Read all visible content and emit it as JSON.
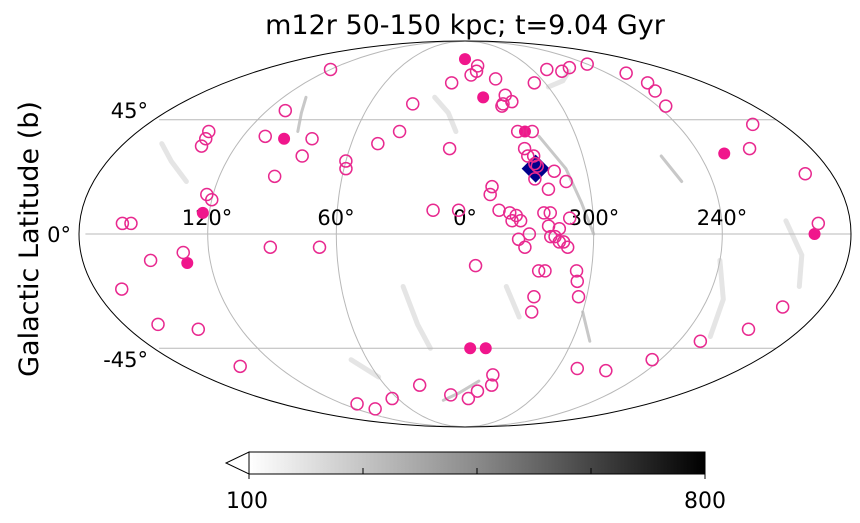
{
  "chart_data": {
    "type": "scatter",
    "projection": "mollweide",
    "title": "m12r 50-150 kpc; t=9.04 Gyr",
    "ylabel": "Galactic Latitude (b)",
    "lon_ticks": [
      "120°",
      "60°",
      "0°",
      "300°",
      "240°"
    ],
    "lat_ticks": [
      "45°",
      "0°",
      "-45°"
    ],
    "colorbar": {
      "min_label": "100",
      "max_label": "800",
      "min": 100,
      "max": 800,
      "cmap": "Greys",
      "extend": "min"
    },
    "colors": {
      "open_marker": "#e8298f",
      "filled_marker": "#f0168c",
      "diamond": "#00008b",
      "grid": "#b8b8b8",
      "frame": "#000000"
    },
    "series": [
      {
        "marker": "diamond",
        "filled": true,
        "points": [
          [
            -35,
            25
          ]
        ]
      },
      {
        "marker": "circle",
        "filled": true,
        "points": [
          [
            0,
            75
          ],
          [
            -12,
            55
          ],
          [
            -33,
            40
          ],
          [
            97,
            37
          ],
          [
            -133,
            31
          ],
          [
            123,
            8
          ],
          [
            131,
            -11
          ],
          [
            -163,
            0
          ],
          [
            -3,
            -45
          ],
          [
            -12,
            -45
          ]
        ]
      },
      {
        "marker": "circle",
        "filled": false,
        "points": [
          [
            -12,
            71
          ],
          [
            -5,
            66
          ],
          [
            -10,
            68
          ],
          [
            -24,
            64
          ],
          [
            -52,
            62
          ],
          [
            -84,
            68
          ],
          [
            -73,
            69
          ],
          [
            -120,
            72
          ],
          [
            -136,
            67
          ],
          [
            -125,
            51
          ],
          [
            -163,
            43
          ],
          [
            120,
            69
          ],
          [
            33,
            52
          ],
          [
            10,
            62
          ],
          [
            -27,
            56
          ],
          [
            -30,
            53
          ],
          [
            -24,
            52
          ],
          [
            -23,
            51
          ],
          [
            -29,
            40
          ],
          [
            -37,
            40
          ],
          [
            -31,
            33
          ],
          [
            -32,
            30
          ],
          [
            -35,
            30
          ],
          [
            -35,
            27
          ],
          [
            -36,
            26
          ],
          [
            -44,
            24
          ],
          [
            -49,
            20
          ],
          [
            -34,
            21
          ],
          [
            -40,
            17
          ],
          [
            36,
            40
          ],
          [
            8,
            33
          ],
          [
            -13,
            18
          ],
          [
            -12,
            15
          ],
          [
            -49,
            6
          ],
          [
            -37,
            8
          ],
          [
            -40,
            8
          ],
          [
            -39,
            3
          ],
          [
            -44,
            2
          ],
          [
            -40,
            -1
          ],
          [
            -42,
            -1
          ],
          [
            -44,
            -3
          ],
          [
            -46,
            -3
          ],
          [
            -48,
            -5
          ],
          [
            -28,
            -5
          ],
          [
            -24,
            7
          ],
          [
            -26,
            5
          ],
          [
            -22,
            5
          ],
          [
            -21,
            8
          ],
          [
            -16,
            9
          ],
          [
            -25,
            -2
          ],
          [
            -30,
            0
          ],
          [
            -53,
            -14
          ],
          [
            -54,
            -18
          ],
          [
            -56,
            -24
          ],
          [
            -35,
            -14
          ],
          [
            -38,
            -14
          ],
          [
            -34,
            -30
          ],
          [
            -5,
            -12
          ],
          [
            -34,
            -24
          ],
          [
            15,
            9
          ],
          [
            3,
            9
          ],
          [
            46,
            35
          ],
          [
            60,
            28
          ],
          [
            83,
            30
          ],
          [
            82,
            37
          ],
          [
            108,
            38
          ],
          [
            109,
            49
          ],
          [
            93,
            22
          ],
          [
            59,
            25
          ],
          [
            141,
            40
          ],
          [
            139,
            37
          ],
          [
            138,
            34
          ],
          [
            123,
            15
          ],
          [
            120,
            13
          ],
          [
            160,
            4
          ],
          [
            156,
            4
          ],
          [
            148,
            -10
          ],
          [
            132,
            -7
          ],
          [
            91,
            -5
          ],
          [
            68,
            -5
          ],
          [
            167,
            -21
          ],
          [
            162,
            -35
          ],
          [
            143,
            -37
          ],
          [
            144,
            -53
          ],
          [
            106,
            -72
          ],
          [
            99,
            -75
          ],
          [
            65,
            -69
          ],
          [
            34,
            -62
          ],
          [
            12,
            -67
          ],
          [
            -10,
            -65
          ],
          [
            -19,
            -57
          ],
          [
            -20,
            -62
          ],
          [
            -3,
            -69
          ],
          [
            -73,
            -54
          ],
          [
            -93,
            -55
          ],
          [
            -115,
            -50
          ],
          [
            -132,
            -42
          ],
          [
            -152,
            -37
          ],
          [
            -160,
            -28
          ],
          [
            -165,
            4
          ],
          [
            -167,
            23
          ],
          [
            -148,
            33
          ],
          [
            -132,
            58
          ],
          [
            -137,
            62
          ],
          [
            -96,
            70
          ]
        ]
      }
    ]
  }
}
